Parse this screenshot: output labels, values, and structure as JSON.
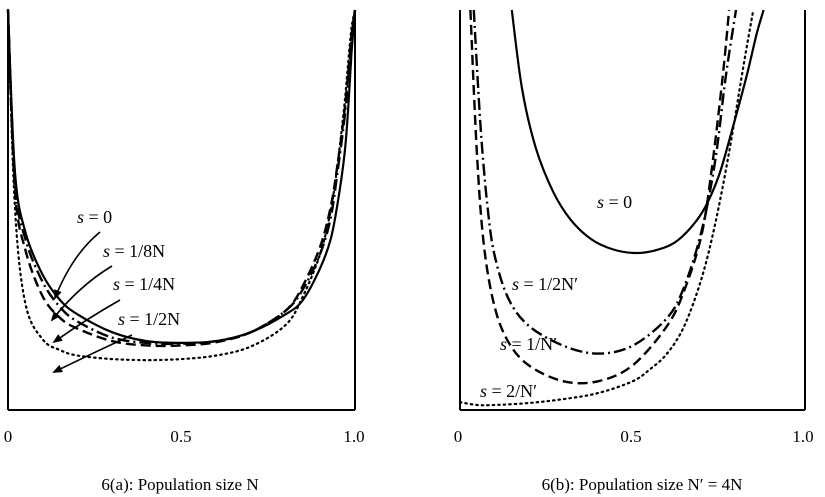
{
  "chart_data": [
    {
      "type": "line",
      "title": "6(a): Population size N",
      "xlabel": "",
      "ylabel": "",
      "xlim": [
        0,
        1
      ],
      "ylim": [
        0,
        1
      ],
      "x_ticks": [
        "0",
        "0.5",
        "1.0"
      ],
      "grid": false,
      "series": [
        {
          "name": "s = 0",
          "style": "solid",
          "x": [
            0.0,
            0.02,
            0.05,
            0.1,
            0.15,
            0.2,
            0.3,
            0.4,
            0.5,
            0.6,
            0.7,
            0.8,
            0.85,
            0.9,
            0.93,
            0.95,
            0.97,
            0.98,
            0.99,
            1.0
          ],
          "y": [
            1.0,
            0.55,
            0.38,
            0.26,
            0.19,
            0.15,
            0.1,
            0.075,
            0.07,
            0.075,
            0.1,
            0.15,
            0.19,
            0.28,
            0.36,
            0.46,
            0.6,
            0.72,
            0.88,
            1.0
          ]
        },
        {
          "name": "s = 1/8N",
          "style": "dash-dot",
          "x": [
            0.0,
            0.02,
            0.05,
            0.1,
            0.15,
            0.2,
            0.3,
            0.4,
            0.5,
            0.6,
            0.7,
            0.8,
            0.85,
            0.9,
            0.93,
            0.95,
            0.97,
            0.98,
            0.99,
            1.0
          ],
          "y": [
            1.0,
            0.52,
            0.36,
            0.24,
            0.17,
            0.13,
            0.085,
            0.07,
            0.068,
            0.075,
            0.1,
            0.16,
            0.22,
            0.32,
            0.42,
            0.55,
            0.7,
            0.8,
            0.92,
            1.0
          ]
        },
        {
          "name": "s = 1/4N",
          "style": "dashed",
          "x": [
            0.0,
            0.02,
            0.05,
            0.1,
            0.15,
            0.2,
            0.3,
            0.4,
            0.5,
            0.6,
            0.7,
            0.8,
            0.85,
            0.9,
            0.93,
            0.95,
            0.97,
            0.98,
            0.99,
            1.0
          ],
          "y": [
            1.0,
            0.5,
            0.33,
            0.2,
            0.14,
            0.11,
            0.075,
            0.063,
            0.063,
            0.072,
            0.1,
            0.16,
            0.23,
            0.34,
            0.45,
            0.57,
            0.72,
            0.82,
            0.93,
            1.0
          ]
        },
        {
          "name": "s = 1/2N",
          "style": "dotted",
          "x": [
            0.0,
            0.02,
            0.05,
            0.1,
            0.15,
            0.2,
            0.3,
            0.4,
            0.5,
            0.6,
            0.7,
            0.8,
            0.85,
            0.9,
            0.93,
            0.95,
            0.97,
            0.98,
            0.99,
            1.0
          ],
          "y": [
            1.0,
            0.45,
            0.18,
            0.08,
            0.05,
            0.035,
            0.025,
            0.022,
            0.025,
            0.035,
            0.06,
            0.12,
            0.2,
            0.32,
            0.44,
            0.57,
            0.74,
            0.85,
            0.95,
            1.0
          ]
        }
      ],
      "annotations": [
        {
          "s": "s",
          "rest": " = 0"
        },
        {
          "s": "s",
          "rest": " = 1/8N"
        },
        {
          "s": "s",
          "rest": " = 1/4N"
        },
        {
          "s": "s",
          "rest": " = 1/2N"
        }
      ]
    },
    {
      "type": "line",
      "title": "6(b): Population size N′ = 4N",
      "xlabel": "",
      "ylabel": "",
      "xlim": [
        0,
        1
      ],
      "ylim": [
        0,
        1
      ],
      "x_ticks": [
        "0",
        "0.5",
        "1.0"
      ],
      "grid": false,
      "series": [
        {
          "name": "s = 0",
          "style": "solid",
          "x": [
            0.15,
            0.18,
            0.22,
            0.27,
            0.32,
            0.38,
            0.44,
            0.5,
            0.56,
            0.62,
            0.67,
            0.71,
            0.75,
            0.79,
            0.83,
            0.86,
            0.88
          ],
          "y": [
            1.0,
            0.8,
            0.65,
            0.54,
            0.47,
            0.42,
            0.395,
            0.385,
            0.39,
            0.41,
            0.45,
            0.5,
            0.58,
            0.7,
            0.83,
            0.94,
            1.0
          ]
        },
        {
          "name": "s = 1/2N′",
          "style": "dash-dot",
          "x": [
            0.04,
            0.06,
            0.08,
            0.1,
            0.14,
            0.2,
            0.3,
            0.4,
            0.5,
            0.6,
            0.65,
            0.7,
            0.74,
            0.77,
            0.8
          ],
          "y": [
            1.0,
            0.7,
            0.5,
            0.38,
            0.27,
            0.2,
            0.15,
            0.13,
            0.15,
            0.22,
            0.3,
            0.44,
            0.62,
            0.83,
            1.0
          ]
        },
        {
          "name": "s = 1/N′",
          "style": "dashed",
          "x": [
            0.03,
            0.05,
            0.07,
            0.1,
            0.14,
            0.2,
            0.3,
            0.4,
            0.5,
            0.6,
            0.65,
            0.7,
            0.73,
            0.76,
            0.78
          ],
          "y": [
            1.0,
            0.62,
            0.4,
            0.25,
            0.16,
            0.1,
            0.06,
            0.06,
            0.1,
            0.2,
            0.29,
            0.43,
            0.6,
            0.82,
            1.0
          ]
        },
        {
          "name": "s = 2/N′",
          "style": "dotted",
          "x": [
            0.0,
            0.05,
            0.1,
            0.2,
            0.3,
            0.4,
            0.5,
            0.55,
            0.6,
            0.65,
            0.7,
            0.74,
            0.78,
            0.82,
            0.85
          ],
          "y": [
            0.007,
            0.0,
            0.0,
            0.005,
            0.015,
            0.03,
            0.06,
            0.09,
            0.13,
            0.2,
            0.32,
            0.46,
            0.64,
            0.85,
            1.0
          ]
        }
      ],
      "annotations": [
        {
          "s": "s",
          "rest": " = 0"
        },
        {
          "s": "s",
          "rest": " = 1/2N′"
        },
        {
          "s": "s",
          "rest": " = 1/N′"
        },
        {
          "s": "s",
          "rest": " = 2/N′"
        }
      ]
    }
  ]
}
